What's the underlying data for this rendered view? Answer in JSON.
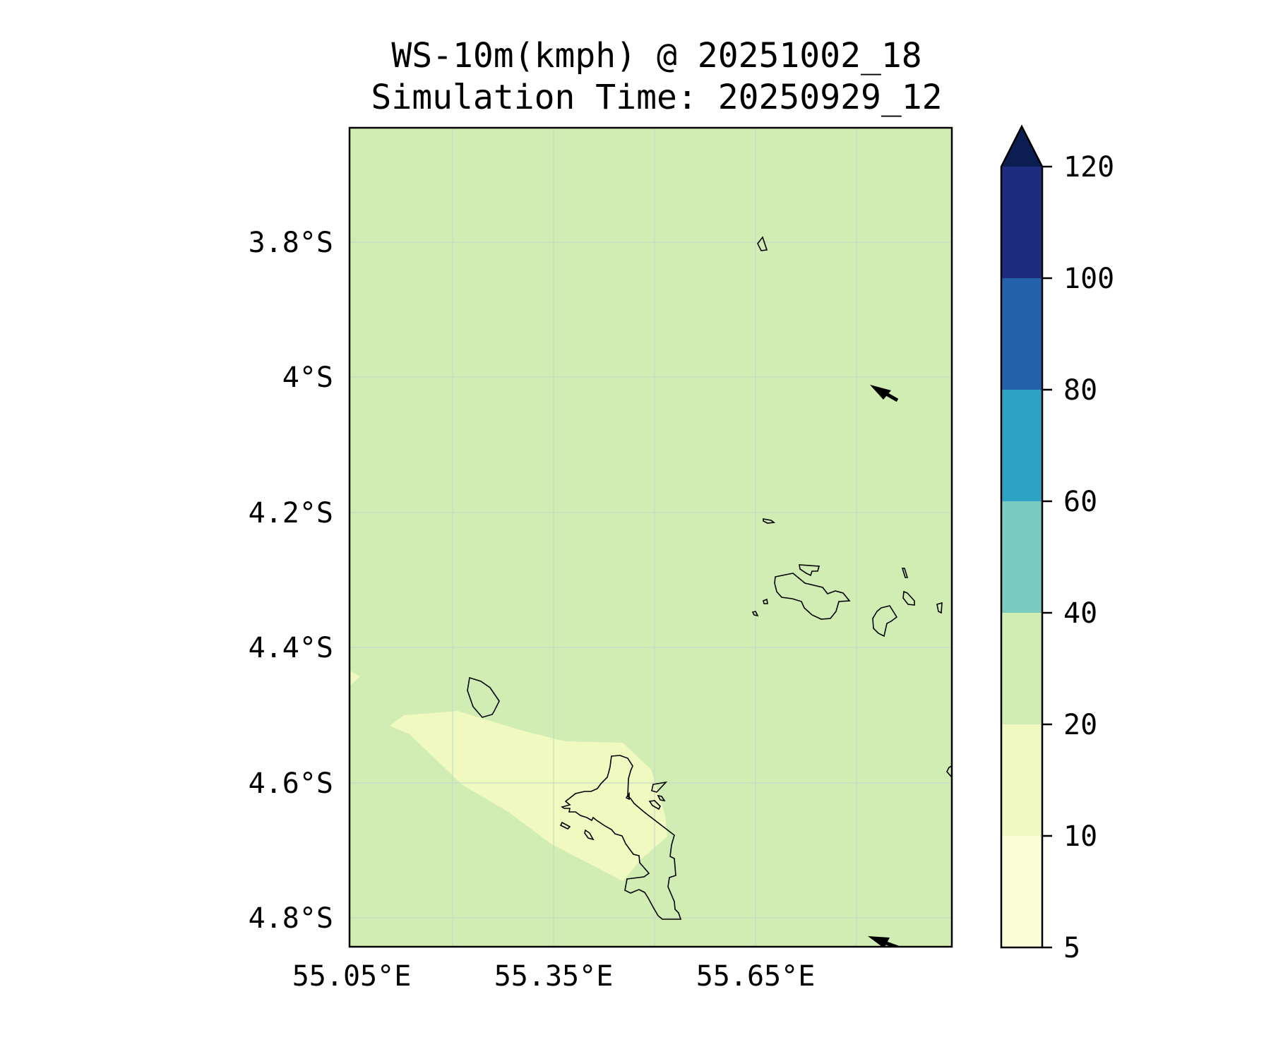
{
  "title": {
    "line1": "WS-10m(kmph) @ 20251002_18",
    "line2": "Simulation Time: 20250929_12"
  },
  "map": {
    "lat_ticks": [
      "3.8°S",
      "4°S",
      "4.2°S",
      "4.4°S",
      "4.6°S",
      "4.8°S"
    ],
    "lon_ticks": [
      "55.05°E",
      "55.35°E",
      "55.65°E"
    ],
    "fill_colors": {
      "20-40": "#d2edb3",
      "10-20": "#f0f9bf"
    }
  },
  "colorbar": {
    "levels": [
      "5",
      "10",
      "20",
      "40",
      "60",
      "80",
      "100",
      "120"
    ],
    "colors": [
      "#fbfed6",
      "#f0f9bf",
      "#d2edb3",
      "#79cbbf",
      "#2fa3c4",
      "#2362aa",
      "#1e2c7f",
      "#0c1e51"
    ]
  }
}
